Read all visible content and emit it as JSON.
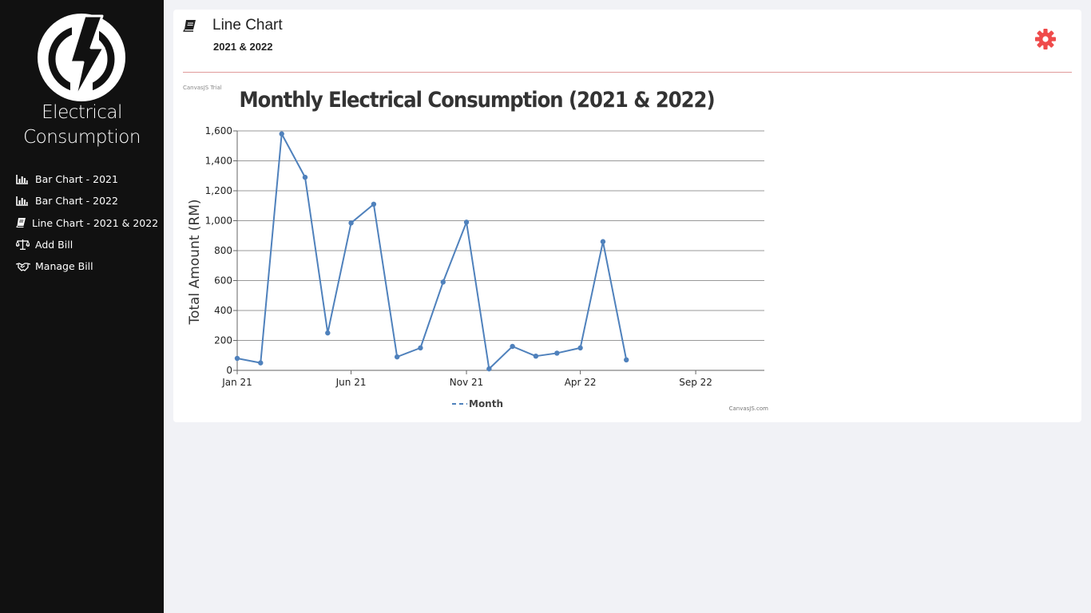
{
  "sidebar": {
    "brand_line1": "Electrical",
    "brand_line2": "Consumption",
    "items": [
      {
        "label": "Bar Chart - 2021",
        "icon": "bar-chart-icon"
      },
      {
        "label": "Bar Chart - 2022",
        "icon": "bar-chart-icon"
      },
      {
        "label": "Line Chart - 2021 & 2022",
        "icon": "book-icon"
      },
      {
        "label": "Add Bill",
        "icon": "scale-icon"
      },
      {
        "label": "Manage Bill",
        "icon": "handshake-icon"
      }
    ]
  },
  "header": {
    "title": "Line Chart",
    "subtitle": "2021 & 2022"
  },
  "colors": {
    "accent": "#ef4b4b",
    "line": "#4f81bc",
    "sidebar_bg": "#111111"
  },
  "chart_data": {
    "type": "line",
    "title": "Monthly Electrical Consumption (2021 & 2022)",
    "ylabel": "Total Amount (RM)",
    "legend": "Month",
    "legend_position": "bottom",
    "watermark_left": "CanvasJS Trial",
    "watermark_right": "CanvasJS.com",
    "ylim": [
      0,
      1600
    ],
    "yticks": [
      "0",
      "200",
      "400",
      "600",
      "800",
      "1,000",
      "1,200",
      "1,400",
      "1,600"
    ],
    "xticks": [
      "Jan 21",
      "Jun 21",
      "Nov 21",
      "Apr 22",
      "Sep 22"
    ],
    "grid": true,
    "x": [
      "2021-01",
      "2021-02",
      "2021-03",
      "2021-04",
      "2021-05",
      "2021-06",
      "2021-07",
      "2021-08",
      "2021-09",
      "2021-10",
      "2021-11",
      "2021-12",
      "2022-01",
      "2022-02",
      "2022-03",
      "2022-04",
      "2022-05",
      "2022-06"
    ],
    "values": [
      80,
      50,
      1580,
      1290,
      250,
      985,
      1110,
      90,
      150,
      590,
      990,
      10,
      160,
      95,
      115,
      150,
      860,
      70
    ]
  }
}
